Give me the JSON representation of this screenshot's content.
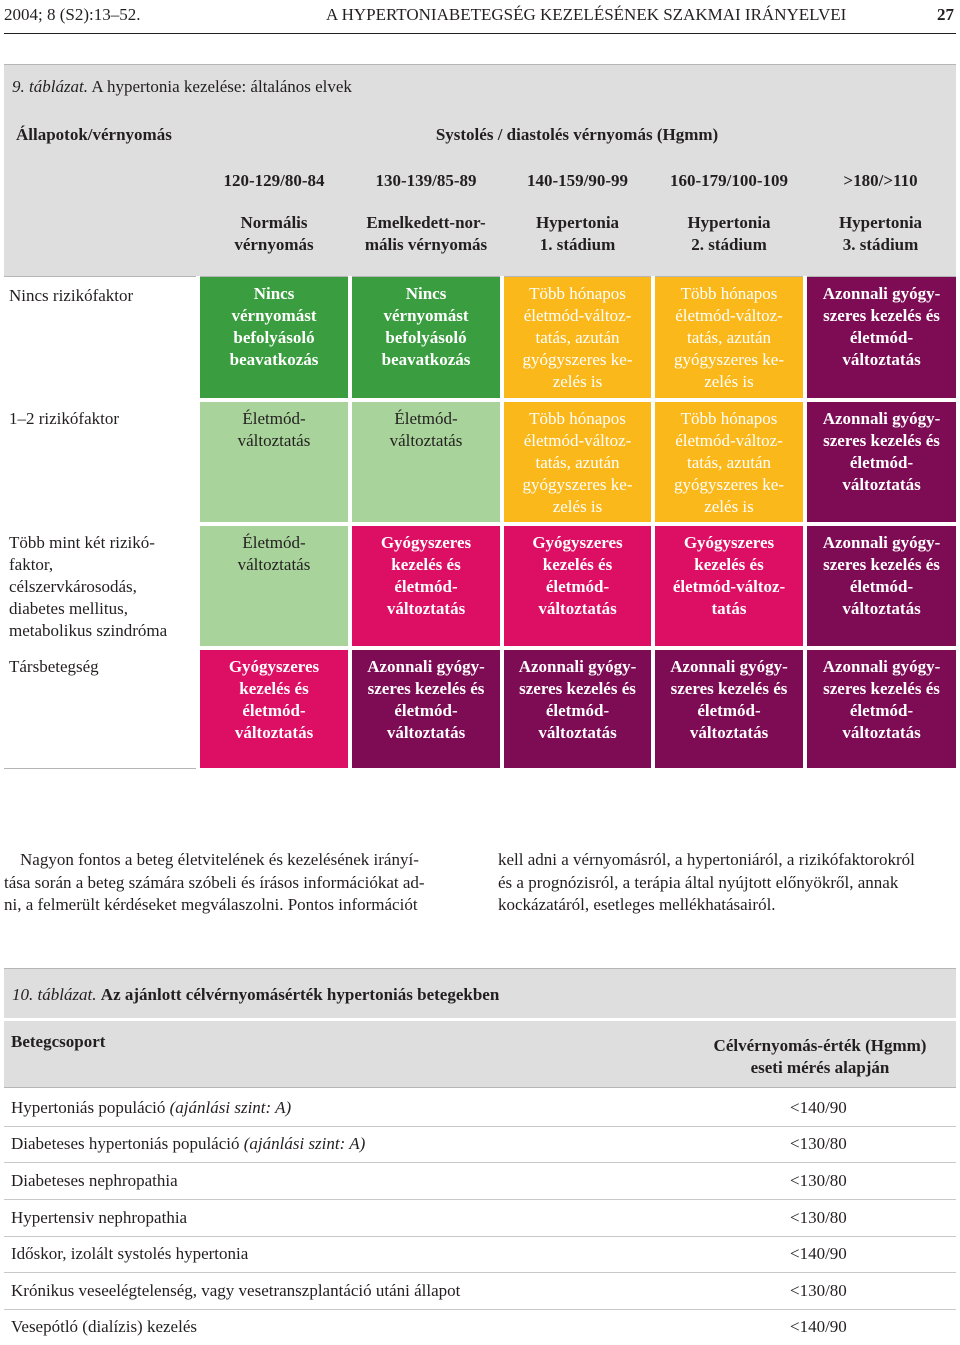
{
  "page_header": {
    "left": "2004; 8 (S2):13–52.",
    "center": "A HYPERTONIABETEGSÉG KEZELÉSÉNEK SZAKMAI IRÁNYELVEI",
    "page_number": "27"
  },
  "table9": {
    "caption_label": "9. táblázat.",
    "caption_title": "A hypertonia kezelése: általános elvek",
    "corner_header": "Állapotok/vérnyomás",
    "group_header": "Systolés / diastolés vérnyomás (Hgmm)",
    "bp_ranges": [
      "120-129/80-84",
      "130-139/85-89",
      "140-159/90-99",
      "160-179/100-109",
      ">180/>110"
    ],
    "bp_categories": [
      [
        "Normális",
        "vérnyomás"
      ],
      [
        "Emelkedett-nor-",
        "mális vérnyomás"
      ],
      [
        "Hypertonia",
        "1. stádium"
      ],
      [
        "Hypertonia",
        "2. stádium"
      ],
      [
        "Hypertonia",
        "3. stádium"
      ]
    ],
    "rows": [
      {
        "label": [
          "Nincs rizikófaktor"
        ],
        "cells": [
          [
            "Nincs",
            "vérnyomást",
            "befolyásoló",
            "beavatkozás"
          ],
          [
            "Nincs",
            "vérnyomást",
            "befolyásoló",
            "beavatkozás"
          ],
          [
            "Több hónapos",
            "életmód-változ-",
            "tatás, azután",
            "gyógyszeres ke-",
            "zelés is"
          ],
          [
            "Több hónapos",
            "életmód-változ-",
            "tatás, azután",
            "gyógyszeres ke-",
            "zelés is"
          ],
          [
            "Azonnali gyógy-",
            "szeres kezelés és",
            "életmód-",
            "változtatás"
          ]
        ]
      },
      {
        "label": [
          "1–2 rizikófaktor"
        ],
        "cells": [
          [
            "Életmód-",
            "változtatás"
          ],
          [
            "Életmód-",
            "változtatás"
          ],
          [
            "Több hónapos",
            "életmód-változ-",
            "tatás, azután",
            "gyógyszeres ke-",
            "zelés is"
          ],
          [
            "Több hónapos",
            "életmód-változ-",
            "tatás, azután",
            "gyógyszeres ke-",
            "zelés is"
          ],
          [
            "Azonnali gyógy-",
            "szeres kezelés és",
            "életmód-",
            "változtatás"
          ]
        ]
      },
      {
        "label": [
          "Több mint két rizikó-",
          "faktor,",
          "célszervkárosodás,",
          "diabetes mellitus,",
          "metabolikus szindróma"
        ],
        "cells": [
          [
            "Életmód-",
            "változtatás"
          ],
          [
            "Gyógyszeres",
            "kezelés és",
            "életmód-",
            "változtatás"
          ],
          [
            "Gyógyszeres",
            "kezelés és",
            "életmód-",
            "változtatás"
          ],
          [
            "Gyógyszeres",
            "kezelés és",
            "életmód-változ-",
            "tatás"
          ],
          [
            "Azonnali gyógy-",
            "szeres kezelés és",
            "életmód-",
            "változtatás"
          ]
        ]
      },
      {
        "label": [
          "Társbetegség"
        ],
        "cells": [
          [
            "Gyógyszeres",
            "kezelés és",
            "életmód-",
            "változtatás"
          ],
          [
            "Azonnali gyógy-",
            "szeres kezelés és",
            "életmód-",
            "változtatás"
          ],
          [
            "Azonnali gyógy-",
            "szeres kezelés és",
            "életmód-",
            "változtatás"
          ],
          [
            "Azonnali gyógy-",
            "szeres kezelés és",
            "életmód-",
            "változtatás"
          ],
          [
            "Azonnali gyógy-",
            "szeres kezelés és",
            "életmód-",
            "változtatás"
          ]
        ]
      }
    ]
  },
  "body_text": {
    "left_column": [
      "Nagyon fontos a beteg életvitelének és kezelésének irányí-",
      "tása során a beteg számára szóbeli és írásos információkat ad-",
      "ni, a felmerült kérdéseket megválaszolni. Pontos információt"
    ],
    "right_column": [
      "kell adni a vérnyomásról, a hypertoniáról, a rizikófaktorokról",
      "és a prognózisról, a terápia által nyújtott előnyökről, annak",
      "kockázatáról, esetleges mellékhatásairól."
    ]
  },
  "table10": {
    "caption_label": "10. táblázat.",
    "caption_title": "Az ajánlott célvérnyomásérték hypertoniás betegekben",
    "col1_header": "Betegcsoport",
    "col2_header": [
      "Célvérnyomás-érték (Hgmm)",
      "eseti mérés alapján"
    ],
    "rows": [
      {
        "group": "Hypertoniás populáció ",
        "note": "(ajánlási szint: A)",
        "value": "<140/90"
      },
      {
        "group": "Diabeteses hypertoniás populáció ",
        "note": "(ajánlási szint: A)",
        "value": "<130/80"
      },
      {
        "group": "Diabeteses nephropathia",
        "note": "",
        "value": "<130/80"
      },
      {
        "group": "Hypertensiv nephropathia",
        "note": "",
        "value": "<130/80"
      },
      {
        "group": "Időskor, izolált systolés hypertonia",
        "note": "",
        "value": "<140/90"
      },
      {
        "group": "Krónikus veseelégtelenség, vagy vesetranszplantáció utáni állapot",
        "note": "",
        "value": "<130/80"
      },
      {
        "group": "Vesepótló (dialízis) kezelés",
        "note": "",
        "value": "<140/90"
      }
    ]
  },
  "colors": {
    "green": "#3a9d3f",
    "light_green": "#a8d39a",
    "yellow": "#fbb81b",
    "pink": "#dd0f64",
    "purple": "#7d0c55",
    "gray": "#dedede"
  }
}
